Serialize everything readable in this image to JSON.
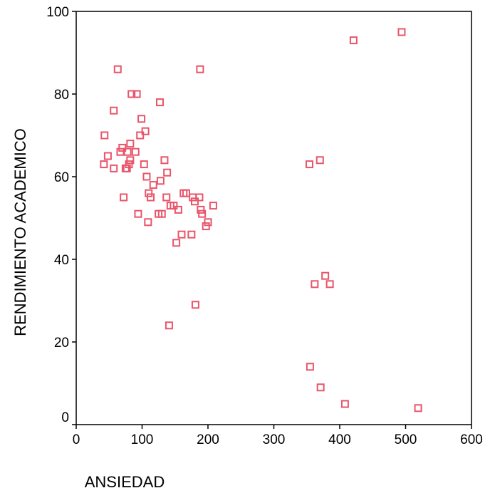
{
  "chart_data": {
    "type": "scatter",
    "title": "",
    "xlabel": "ANSIEDAD",
    "ylabel": "RENDIMIENTO ACADEMICO",
    "xlim": [
      0,
      600
    ],
    "ylim": [
      0,
      100
    ],
    "x_ticks": [
      "0",
      "100",
      "200",
      "300",
      "400",
      "500",
      "600"
    ],
    "y_ticks": [
      "0",
      "20",
      "40",
      "60",
      "80",
      "100"
    ],
    "x_tick_values": [
      0,
      100,
      200,
      300,
      400,
      500,
      600
    ],
    "y_tick_values": [
      0,
      20,
      40,
      60,
      80,
      100
    ],
    "grid": false,
    "legend": "none",
    "marker": "open-square",
    "marker_color": "#e8556a",
    "points": [
      {
        "x": 43,
        "y": 70
      },
      {
        "x": 42,
        "y": 63
      },
      {
        "x": 48,
        "y": 65
      },
      {
        "x": 57,
        "y": 62
      },
      {
        "x": 57,
        "y": 76
      },
      {
        "x": 63,
        "y": 86
      },
      {
        "x": 67,
        "y": 66
      },
      {
        "x": 70,
        "y": 67
      },
      {
        "x": 72,
        "y": 55
      },
      {
        "x": 75,
        "y": 62
      },
      {
        "x": 77,
        "y": 62
      },
      {
        "x": 78,
        "y": 66
      },
      {
        "x": 80,
        "y": 63
      },
      {
        "x": 82,
        "y": 64
      },
      {
        "x": 82,
        "y": 68
      },
      {
        "x": 84,
        "y": 80
      },
      {
        "x": 90,
        "y": 66
      },
      {
        "x": 92,
        "y": 80
      },
      {
        "x": 94,
        "y": 51
      },
      {
        "x": 97,
        "y": 70
      },
      {
        "x": 99,
        "y": 74
      },
      {
        "x": 103,
        "y": 63
      },
      {
        "x": 105,
        "y": 71
      },
      {
        "x": 107,
        "y": 60
      },
      {
        "x": 109,
        "y": 49
      },
      {
        "x": 110,
        "y": 56
      },
      {
        "x": 113,
        "y": 55
      },
      {
        "x": 117,
        "y": 58
      },
      {
        "x": 125,
        "y": 51
      },
      {
        "x": 127,
        "y": 78
      },
      {
        "x": 128,
        "y": 59
      },
      {
        "x": 130,
        "y": 51
      },
      {
        "x": 134,
        "y": 64
      },
      {
        "x": 137,
        "y": 55
      },
      {
        "x": 138,
        "y": 61
      },
      {
        "x": 141,
        "y": 24
      },
      {
        "x": 143,
        "y": 53
      },
      {
        "x": 148,
        "y": 53
      },
      {
        "x": 152,
        "y": 44
      },
      {
        "x": 155,
        "y": 52
      },
      {
        "x": 160,
        "y": 46
      },
      {
        "x": 163,
        "y": 56
      },
      {
        "x": 167,
        "y": 56
      },
      {
        "x": 175,
        "y": 46
      },
      {
        "x": 177,
        "y": 55
      },
      {
        "x": 180,
        "y": 54
      },
      {
        "x": 181,
        "y": 29
      },
      {
        "x": 187,
        "y": 55
      },
      {
        "x": 188,
        "y": 86
      },
      {
        "x": 189,
        "y": 52
      },
      {
        "x": 191,
        "y": 51
      },
      {
        "x": 197,
        "y": 48
      },
      {
        "x": 200,
        "y": 49
      },
      {
        "x": 208,
        "y": 53
      },
      {
        "x": 354,
        "y": 63
      },
      {
        "x": 355,
        "y": 14
      },
      {
        "x": 362,
        "y": 34
      },
      {
        "x": 370,
        "y": 64
      },
      {
        "x": 371,
        "y": 9
      },
      {
        "x": 378,
        "y": 36
      },
      {
        "x": 385,
        "y": 34
      },
      {
        "x": 408,
        "y": 5
      },
      {
        "x": 421,
        "y": 93
      },
      {
        "x": 494,
        "y": 95
      },
      {
        "x": 519,
        "y": 4
      }
    ]
  }
}
